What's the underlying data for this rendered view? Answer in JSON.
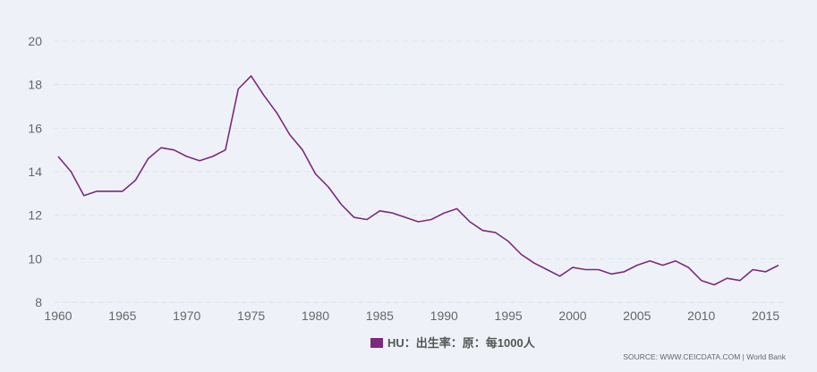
{
  "chart_data": {
    "type": "line",
    "x": [
      1960,
      1961,
      1962,
      1963,
      1964,
      1965,
      1966,
      1967,
      1968,
      1969,
      1970,
      1971,
      1972,
      1973,
      1974,
      1975,
      1976,
      1977,
      1978,
      1979,
      1980,
      1981,
      1982,
      1983,
      1984,
      1985,
      1986,
      1987,
      1988,
      1989,
      1990,
      1991,
      1992,
      1993,
      1994,
      1995,
      1996,
      1997,
      1998,
      1999,
      2000,
      2001,
      2002,
      2003,
      2004,
      2005,
      2006,
      2007,
      2008,
      2009,
      2010,
      2011,
      2012,
      2013,
      2014,
      2015,
      2016
    ],
    "series": [
      {
        "name": "HU：出生率：原：每1000人",
        "color": "#7b2a7c",
        "values": [
          14.7,
          14.0,
          12.9,
          13.1,
          13.1,
          13.1,
          13.6,
          14.6,
          15.1,
          15.0,
          14.7,
          14.5,
          14.7,
          15.0,
          17.8,
          18.4,
          17.5,
          16.7,
          15.7,
          15.0,
          13.9,
          13.3,
          12.5,
          11.9,
          11.8,
          12.2,
          12.1,
          11.9,
          11.7,
          11.8,
          12.1,
          12.3,
          11.7,
          11.3,
          11.2,
          10.8,
          10.2,
          9.8,
          9.5,
          9.2,
          9.6,
          9.5,
          9.5,
          9.3,
          9.4,
          9.7,
          9.9,
          9.7,
          9.9,
          9.6,
          9.0,
          8.8,
          9.1,
          9.0,
          9.5,
          9.4,
          9.7
        ]
      }
    ],
    "xticks": [
      "1960",
      "1965",
      "1970",
      "1975",
      "1980",
      "1985",
      "1990",
      "1995",
      "2000",
      "2005",
      "2010",
      "2015"
    ],
    "yticks": [
      "8",
      "10",
      "12",
      "14",
      "16",
      "18",
      "20"
    ],
    "xlim": [
      1960,
      2016
    ],
    "ylim": [
      8,
      20
    ],
    "grid": true,
    "legend_position": "bottom-center",
    "background_color": "#eef2f8",
    "source": "SOURCE: WWW.CEICDATA.COM | World Bank"
  }
}
